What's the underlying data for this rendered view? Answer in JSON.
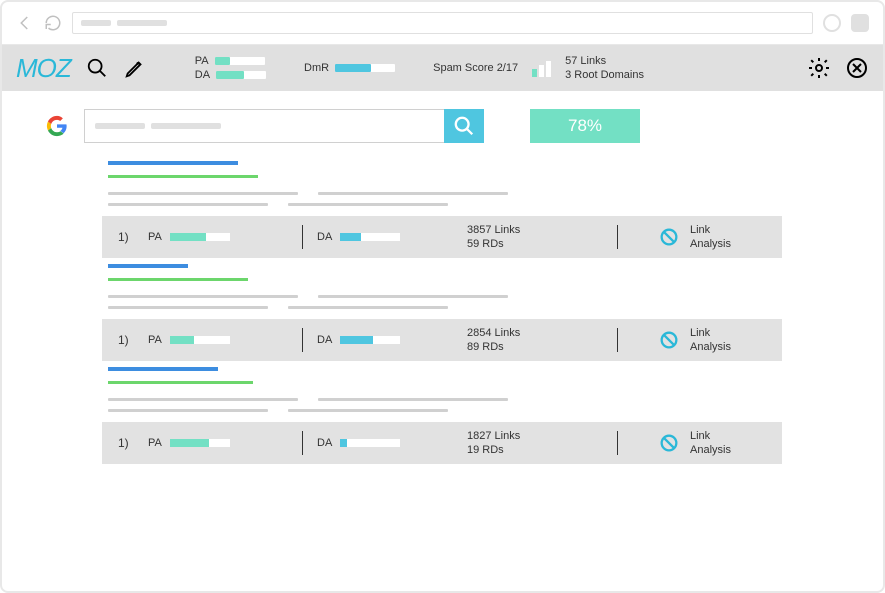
{
  "colors": {
    "toolbar_bg": "#e0e0e0",
    "moz_logo": "#2ab8d8",
    "teal": "#73e0c4",
    "blue": "#4fc6e0",
    "link_blue": "#3d8de0",
    "url_green": "#6cd66c",
    "bar_bg": "#ffffff"
  },
  "toolbar": {
    "logo_text": "MOZ",
    "pa_label": "PA",
    "da_label": "DA",
    "pa_fill_pct": 30,
    "da_fill_pct": 55,
    "pa_color": "#73e0c4",
    "da_color": "#73e0c4",
    "dmr_label": "DmR",
    "dmr_fill_pct": 60,
    "dmr_color": "#4fc6e0",
    "spam_label": "Spam Score 2/17",
    "links_line1": "57 Links",
    "links_line2": "3 Root Domains"
  },
  "search": {
    "pct_label": "78%"
  },
  "results": [
    {
      "idx": "1)",
      "pa_label": "PA",
      "pa_pct": 60,
      "pa_color": "#73e0c4",
      "da_label": "DA",
      "da_pct": 35,
      "da_color": "#4fc6e0",
      "links_line1": "3857 Links",
      "links_line2": "59 RDs",
      "action_line1": "Link",
      "action_line2": "Analysis",
      "title_w": 130,
      "url_w": 150
    },
    {
      "idx": "1)",
      "pa_label": "PA",
      "pa_pct": 40,
      "pa_color": "#73e0c4",
      "da_label": "DA",
      "da_pct": 55,
      "da_color": "#4fc6e0",
      "links_line1": "2854 Links",
      "links_line2": "89 RDs",
      "action_line1": "Link",
      "action_line2": "Analysis",
      "title_w": 80,
      "url_w": 140
    },
    {
      "idx": "1)",
      "pa_label": "PA",
      "pa_pct": 65,
      "pa_color": "#73e0c4",
      "da_label": "DA",
      "da_pct": 12,
      "da_color": "#4fc6e0",
      "links_line1": "1827 Links",
      "links_line2": "19 RDs",
      "action_line1": "Link",
      "action_line2": "Analysis",
      "title_w": 110,
      "url_w": 145
    }
  ]
}
